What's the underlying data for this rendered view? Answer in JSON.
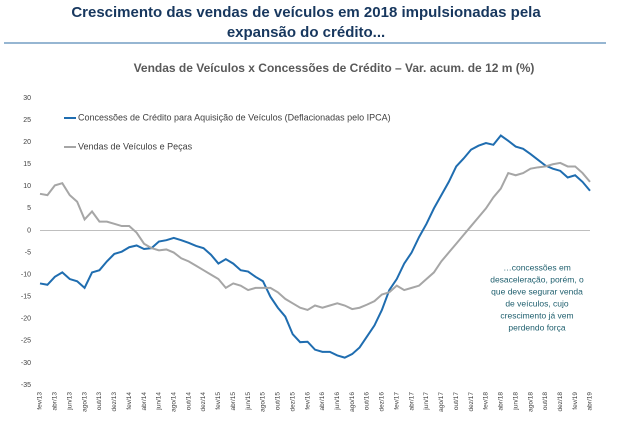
{
  "header": {
    "title_lines": [
      "Crescimento das vendas de veículos em 2018 impulsionadas pela",
      "expansão do crédito..."
    ]
  },
  "chart_data": {
    "type": "line",
    "title": "Vendas de Veículos x Concessões de Crédito – Var. acum. de 12 m (%)",
    "categories": [
      "fev/13",
      null,
      "abr/13",
      null,
      "jun/13",
      null,
      "ago/13",
      null,
      "out/13",
      null,
      "dez/13",
      null,
      "fev/14",
      null,
      "abr/14",
      null,
      "jun/14",
      null,
      "ago/14",
      null,
      "out/14",
      null,
      "dez/14",
      null,
      "fev/15",
      null,
      "abr/15",
      null,
      "jun/15",
      null,
      "ago/15",
      null,
      "out/15",
      null,
      "dez/15",
      null,
      "fev/16",
      null,
      "abr/16",
      null,
      "jun/16",
      null,
      "ago/16",
      null,
      "out/16",
      null,
      "dez/16",
      null,
      "fev/17",
      null,
      "abr/17",
      null,
      "jun/17",
      null,
      "ago/17",
      null,
      "out/17",
      null,
      "dez/17",
      null,
      "fev/18",
      null,
      "abr/18",
      null,
      "jun/18",
      null,
      "ago/18",
      null,
      "out/18",
      null,
      "dez/18",
      null,
      "fev/19",
      null,
      "abr/19"
    ],
    "series": [
      {
        "name": "Concessões de Crédito para Aquisição de Veículos (Deflacionadas pelo IPCA)",
        "color": "#1f6db0",
        "values": [
          -12,
          -12.3,
          -10.5,
          -9.5,
          -11,
          -11.5,
          -13,
          -9.5,
          -9,
          -7,
          -5.3,
          -4.8,
          -3.8,
          -3.4,
          -4.2,
          -4,
          -2.5,
          -2.2,
          -1.7,
          -2.2,
          -2.8,
          -3.5,
          -4,
          -5.5,
          -7.5,
          -6.5,
          -7.5,
          -9,
          -9.3,
          -10.5,
          -11.5,
          -15,
          -17.5,
          -19.5,
          -23.5,
          -25.3,
          -25.2,
          -27,
          -27.5,
          -27.5,
          -28.3,
          -28.8,
          -28,
          -26.5,
          -24,
          -21.5,
          -18,
          -13.5,
          -11,
          -7.5,
          -5,
          -1.5,
          1.5,
          5,
          8,
          11,
          14.5,
          16.3,
          18.3,
          19.2,
          19.8,
          19.4,
          21.5,
          20.3,
          19,
          18.5,
          17.3,
          16,
          14.7,
          14,
          13.5,
          12,
          12.5,
          11,
          9
        ]
      },
      {
        "name": "Vendas de Veículos e Peças",
        "color": "#a6a6a6",
        "values": [
          8.3,
          8,
          10.2,
          10.7,
          8,
          6.5,
          2.5,
          4.3,
          2,
          2,
          1.5,
          1,
          1,
          -0.5,
          -3,
          -4,
          -4.5,
          -4.3,
          -5,
          -6.3,
          -7,
          -8,
          -9,
          -10,
          -11,
          -13,
          -12,
          -12.5,
          -13.5,
          -13,
          -13,
          -13,
          -14,
          -15.5,
          -16.5,
          -17.5,
          -18,
          -17,
          -17.5,
          -17,
          -16.5,
          -17,
          -17.8,
          -17.5,
          -16.8,
          -16,
          -14.5,
          -14,
          -12.5,
          -13.5,
          -13,
          -12.5,
          -11,
          -9.5,
          -7,
          -5,
          -3,
          -1,
          1,
          3,
          5,
          7.5,
          9.5,
          13,
          12.5,
          13,
          14,
          14.3,
          14.5,
          15,
          15.3,
          14.5,
          14.5,
          13,
          11
        ]
      }
    ],
    "ylim": [
      -35,
      30
    ],
    "yticks": [
      -35,
      -30,
      -25,
      -20,
      -15,
      -10,
      -5,
      0,
      5,
      10,
      15,
      20,
      25,
      30
    ],
    "grid": false,
    "annotation_lines": [
      "…concessões em",
      "desaceleração, porém, o",
      "que deve segurar venda",
      "de veículos, cujo",
      "crescimento já vem",
      "perdendo força"
    ]
  }
}
